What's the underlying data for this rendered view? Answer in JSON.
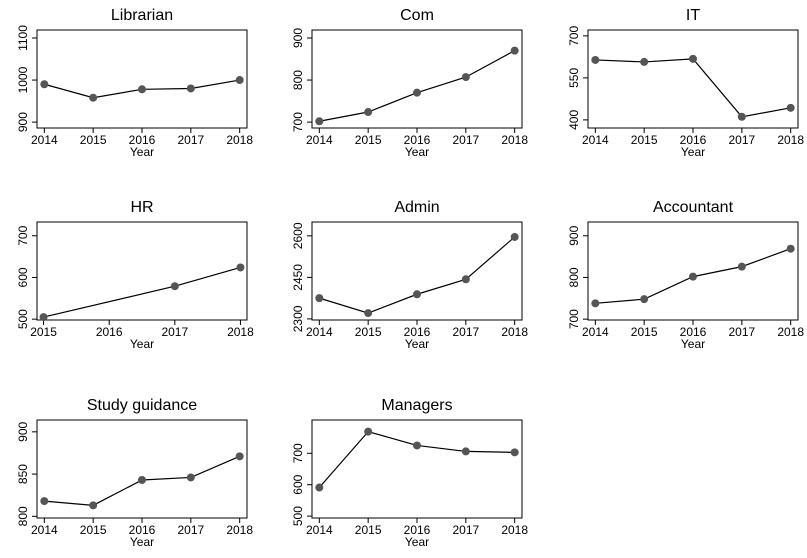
{
  "chart_data": [
    {
      "type": "line",
      "title": "Librarian",
      "x_label": "Year",
      "x": [
        2014,
        2015,
        2016,
        2017,
        2018
      ],
      "values": [
        990,
        958,
        978,
        980,
        1000
      ],
      "xlim": [
        2013.85,
        2018.15
      ],
      "xticks": [
        2014,
        2015,
        2016,
        2017,
        2018
      ],
      "ylim": [
        886,
        1119
      ],
      "yticks": [
        900,
        1000,
        1100
      ],
      "color": "#000000",
      "marker_color": "#555555"
    },
    {
      "type": "line",
      "title": "Com",
      "x_label": "Year",
      "x": [
        2014,
        2015,
        2016,
        2017,
        2018
      ],
      "values": [
        702,
        724,
        770,
        807,
        870
      ],
      "xlim": [
        2013.85,
        2018.15
      ],
      "xticks": [
        2014,
        2015,
        2016,
        2017,
        2018
      ],
      "ylim": [
        686,
        919
      ],
      "yticks": [
        700,
        800,
        900
      ],
      "color": "#000000",
      "marker_color": "#555555"
    },
    {
      "type": "line",
      "title": "IT",
      "x_label": "Year",
      "x": [
        2014,
        2015,
        2016,
        2017,
        2018
      ],
      "values": [
        614,
        607,
        618,
        411,
        443
      ],
      "xlim": [
        2013.85,
        2018.15
      ],
      "xticks": [
        2014,
        2015,
        2016,
        2017,
        2018
      ],
      "ylim": [
        371,
        721
      ],
      "yticks": [
        400,
        550,
        700
      ],
      "color": "#000000",
      "marker_color": "#555555"
    },
    {
      "type": "line",
      "title": "HR",
      "x_label": "Year",
      "x": [
        2015,
        2017,
        2018
      ],
      "values": [
        505,
        579,
        624
      ],
      "xlim": [
        2014.9,
        2018.1
      ],
      "xticks": [
        2015,
        2016,
        2017,
        2018
      ],
      "ylim": [
        498,
        733
      ],
      "yticks": [
        500,
        600,
        700
      ],
      "color": "#000000",
      "marker_color": "#555555"
    },
    {
      "type": "line",
      "title": "Admin",
      "x_label": "Year",
      "x": [
        2014,
        2015,
        2016,
        2017,
        2018
      ],
      "values": [
        2375,
        2321,
        2389,
        2443,
        2596
      ],
      "xlim": [
        2013.85,
        2018.15
      ],
      "xticks": [
        2014,
        2015,
        2016,
        2017,
        2018
      ],
      "ylim": [
        2296,
        2650
      ],
      "yticks": [
        2300,
        2450,
        2600
      ],
      "color": "#000000",
      "marker_color": "#555555"
    },
    {
      "type": "line",
      "title": "Accountant",
      "x_label": "Year",
      "x": [
        2014,
        2015,
        2016,
        2017,
        2018
      ],
      "values": [
        738,
        748,
        802,
        826,
        869
      ],
      "xlim": [
        2013.85,
        2018.15
      ],
      "xticks": [
        2014,
        2015,
        2016,
        2017,
        2018
      ],
      "ylim": [
        698,
        933
      ],
      "yticks": [
        700,
        800,
        900
      ],
      "color": "#000000",
      "marker_color": "#555555"
    },
    {
      "type": "line",
      "title": "Study guidance",
      "x_label": "Year",
      "x": [
        2014,
        2015,
        2016,
        2017,
        2018
      ],
      "values": [
        818,
        813,
        843,
        846,
        871
      ],
      "xlim": [
        2013.85,
        2018.15
      ],
      "xticks": [
        2014,
        2015,
        2016,
        2017,
        2018
      ],
      "ylim": [
        798,
        914
      ],
      "yticks": [
        800,
        850,
        900
      ],
      "color": "#000000",
      "marker_color": "#555555"
    },
    {
      "type": "line",
      "title": "Managers",
      "x_label": "Year",
      "x": [
        2014,
        2015,
        2016,
        2017,
        2018
      ],
      "values": [
        591,
        769,
        725,
        706,
        703
      ],
      "xlim": [
        2013.85,
        2018.15
      ],
      "xticks": [
        2014,
        2015,
        2016,
        2017,
        2018
      ],
      "ylim": [
        494,
        806
      ],
      "yticks": [
        500,
        600,
        700
      ],
      "color": "#000000",
      "marker_color": "#555555"
    }
  ]
}
